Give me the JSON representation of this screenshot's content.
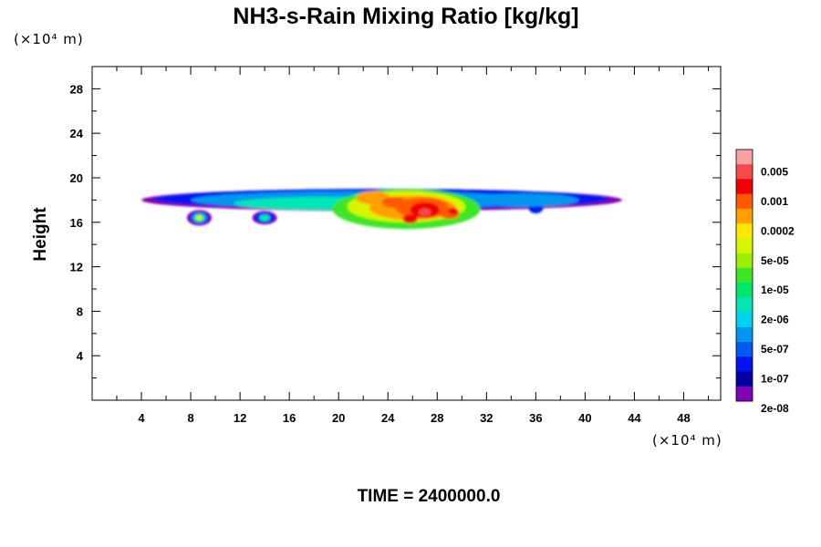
{
  "chart_data": {
    "type": "heatmap",
    "title": "NH3-s-Rain Mixing Ratio [kg/kg]",
    "ylabel": "Height",
    "xlabel": "",
    "x_unit": "(×10⁴ m)",
    "y_unit": "(×10⁴ m)",
    "xlim": [
      0,
      51
    ],
    "ylim": [
      0,
      30
    ],
    "x_ticks": [
      "4",
      "8",
      "12",
      "16",
      "20",
      "24",
      "28",
      "32",
      "36",
      "40",
      "44",
      "48"
    ],
    "y_ticks": [
      "4",
      "8",
      "12",
      "16",
      "20",
      "24",
      "28"
    ],
    "x_tick_values": [
      4,
      8,
      12,
      16,
      20,
      24,
      28,
      32,
      36,
      40,
      44,
      48
    ],
    "y_tick_values": [
      4,
      8,
      12,
      16,
      20,
      24,
      28
    ],
    "colorbar": {
      "colors": [
        "#f9a0a0",
        "#f54a4a",
        "#f00000",
        "#ff5a00",
        "#ffa000",
        "#ffe600",
        "#d7f500",
        "#9af000",
        "#3ce628",
        "#00e66a",
        "#00e6b4",
        "#00d2f0",
        "#0096f0",
        "#005af0",
        "#0014f0",
        "#0000a0",
        "#8200b4"
      ],
      "labels": [
        "0.005",
        "0.001",
        "0.0002",
        "5e-05",
        "1e-05",
        "2e-06",
        "5e-07",
        "1e-07",
        "2e-08"
      ]
    },
    "field_layers": [
      {
        "color": "#8200b4",
        "blobs": [
          [
            23.5,
            18.0,
            19.5,
            1.0
          ],
          [
            8.7,
            16.4,
            1.0,
            0.7
          ],
          [
            14.0,
            16.4,
            1.0,
            0.6
          ]
        ]
      },
      {
        "color": "#0014f0",
        "blobs": [
          [
            23.5,
            18.1,
            18.5,
            0.9
          ],
          [
            8.7,
            16.4,
            0.8,
            0.55
          ],
          [
            14.0,
            16.4,
            0.8,
            0.5
          ],
          [
            36.0,
            17.3,
            0.6,
            0.5
          ]
        ]
      },
      {
        "color": "#0096f0",
        "blobs": [
          [
            22.0,
            18.0,
            14.0,
            0.8
          ],
          [
            35.0,
            18.0,
            4.5,
            0.6
          ],
          [
            8.7,
            16.4,
            0.6,
            0.45
          ]
        ]
      },
      {
        "color": "#00e6b4",
        "blobs": [
          [
            19.0,
            17.7,
            7.5,
            0.6
          ],
          [
            8.7,
            16.4,
            0.45,
            0.35
          ],
          [
            14.0,
            16.4,
            0.45,
            0.3
          ]
        ]
      },
      {
        "color": "#3ce628",
        "blobs": [
          [
            25.5,
            17.2,
            6.0,
            1.8
          ],
          [
            8.7,
            16.4,
            0.35,
            0.3
          ]
        ]
      },
      {
        "color": "#d7f500",
        "blobs": [
          [
            25.5,
            17.4,
            4.8,
            1.4
          ],
          [
            8.7,
            16.4,
            0.25,
            0.2
          ]
        ]
      },
      {
        "color": "#ffa000",
        "blobs": [
          [
            26.0,
            17.3,
            3.5,
            1.1
          ],
          [
            22.8,
            18.2,
            1.4,
            0.6
          ]
        ]
      },
      {
        "color": "#ff5a00",
        "blobs": [
          [
            26.8,
            17.3,
            2.2,
            0.9
          ],
          [
            29.0,
            16.8,
            0.8,
            0.5
          ],
          [
            24.5,
            17.8,
            1.0,
            0.5
          ]
        ]
      },
      {
        "color": "#f00000",
        "blobs": [
          [
            27.0,
            17.1,
            1.2,
            0.7
          ],
          [
            25.8,
            16.3,
            0.6,
            0.4
          ],
          [
            29.3,
            17.0,
            0.4,
            0.3
          ]
        ]
      },
      {
        "color": "#f54a4a",
        "blobs": [
          [
            27.0,
            16.9,
            0.5,
            0.35
          ]
        ]
      }
    ]
  },
  "footer": {
    "time_label": "TIME = 2400000.0"
  }
}
